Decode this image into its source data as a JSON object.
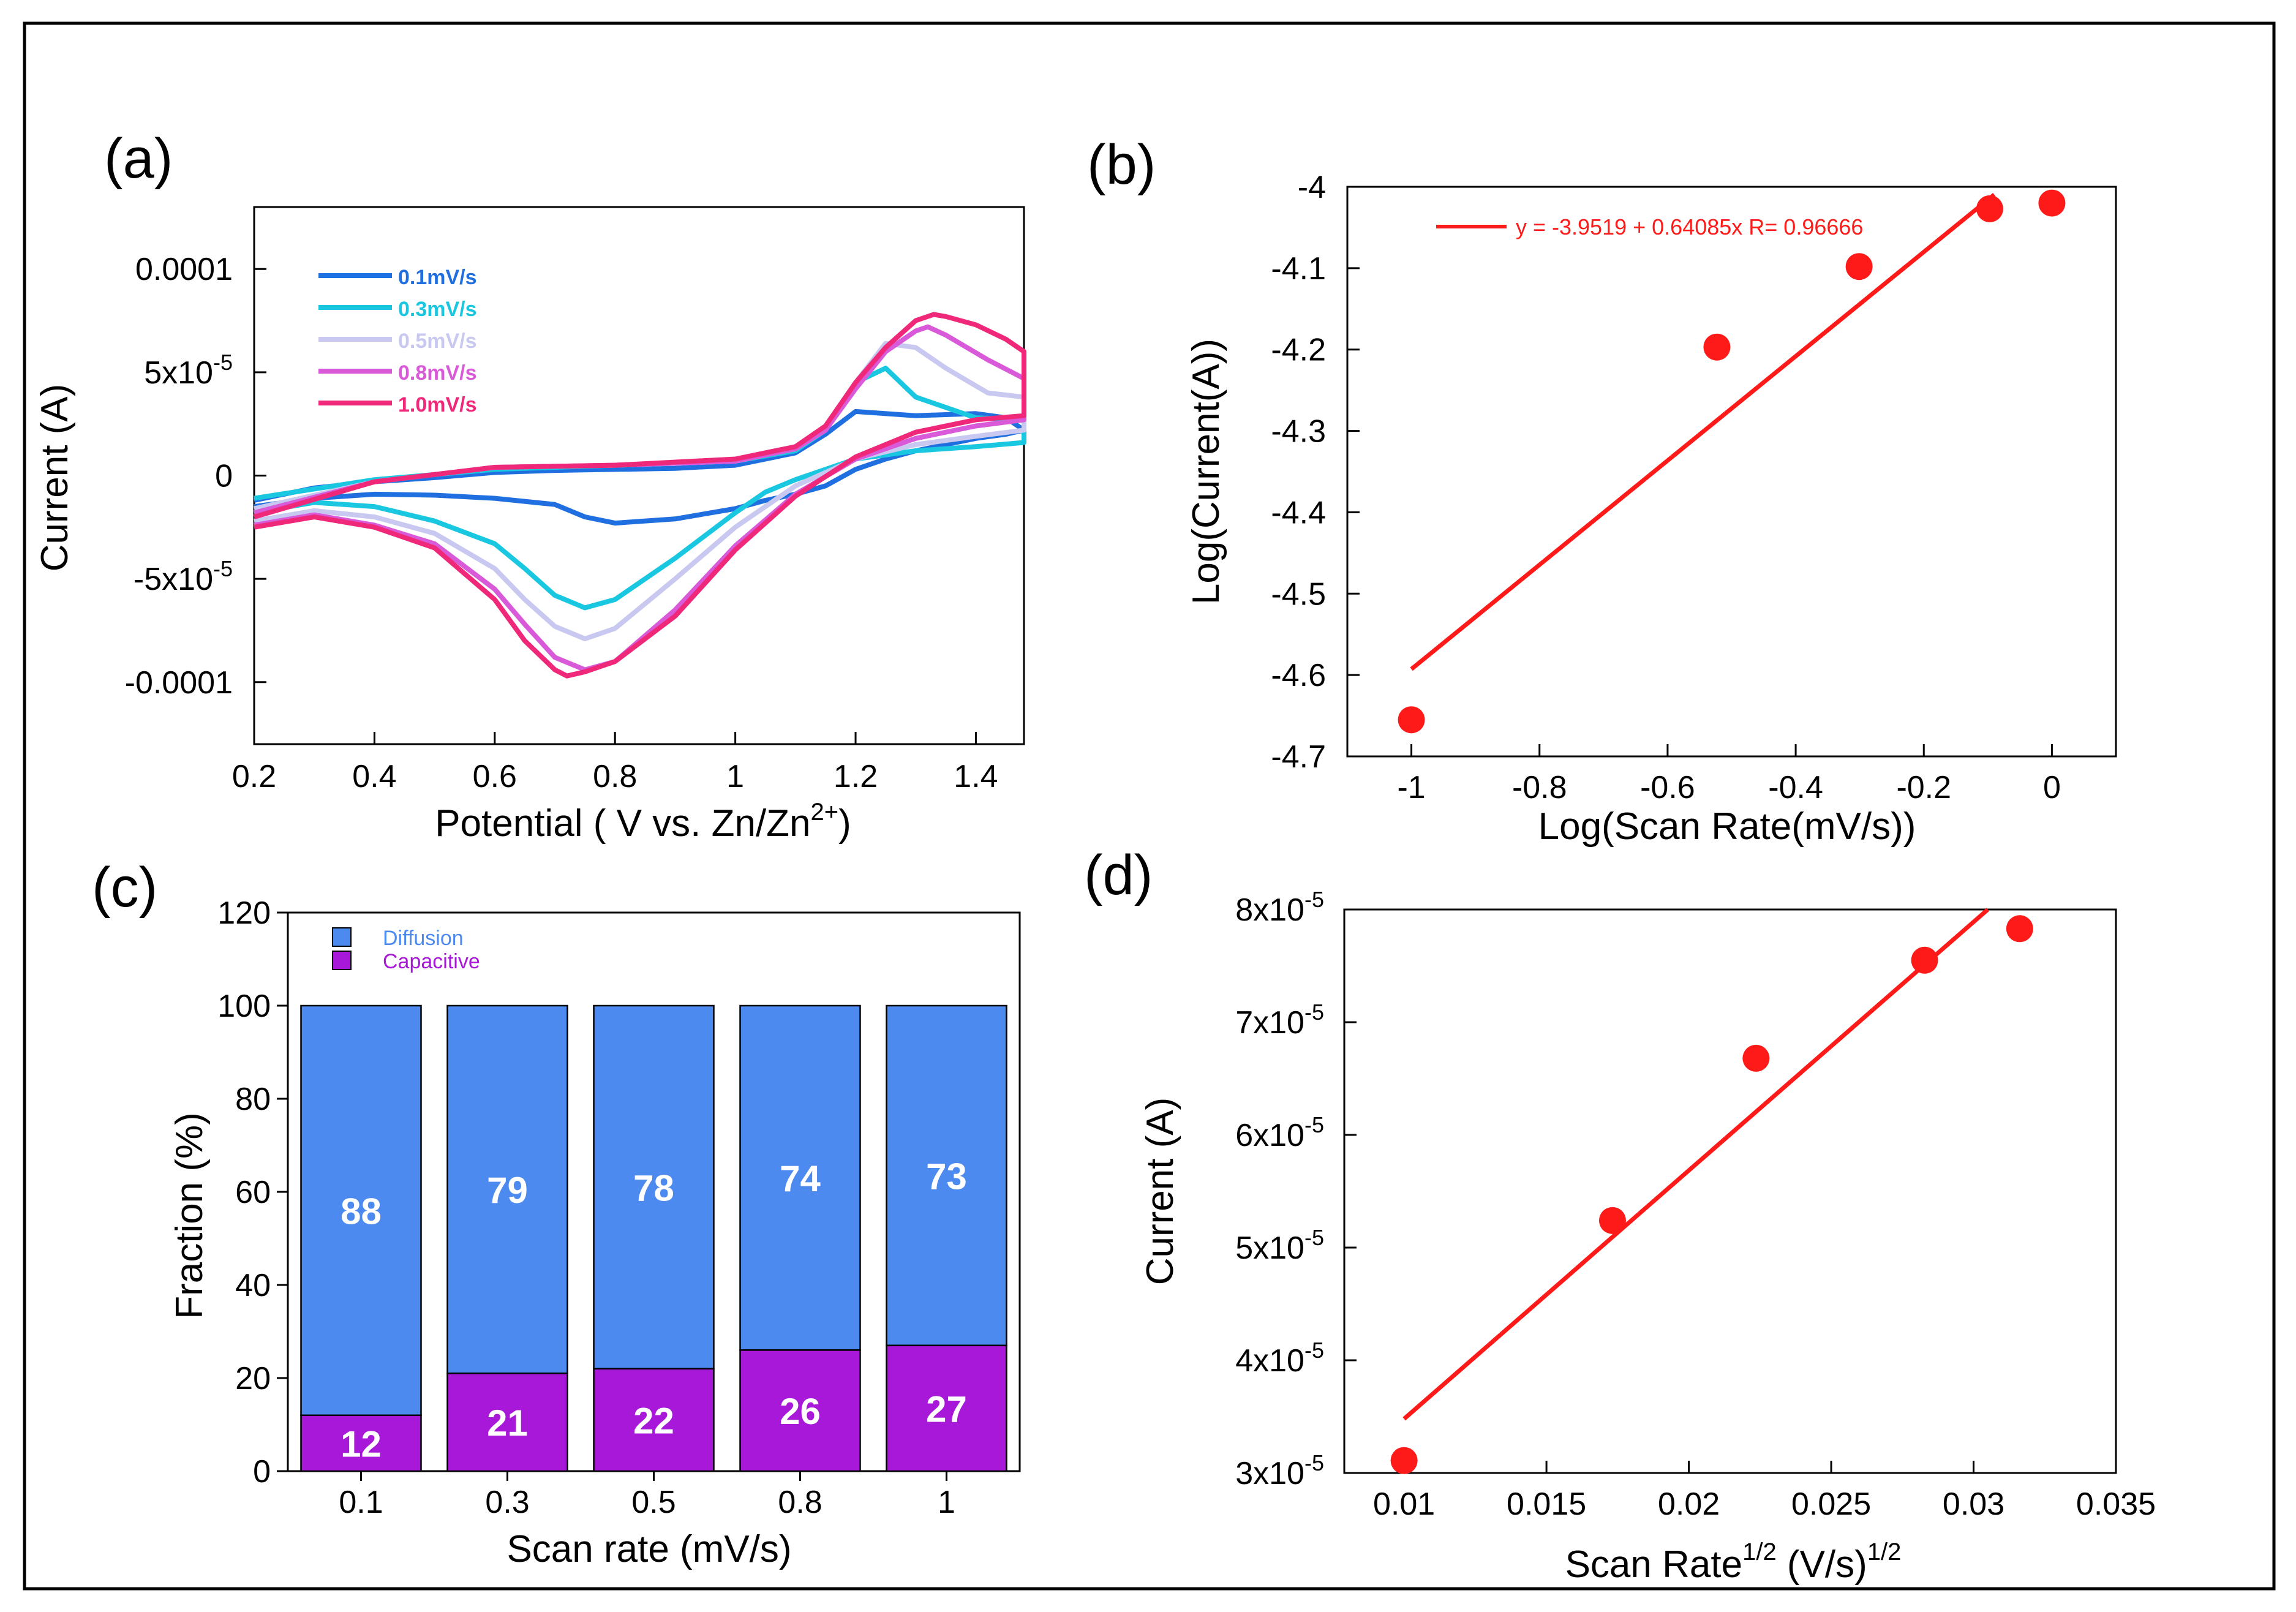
{
  "panels": [
    {
      "id": "a",
      "panel_label": "(a)",
      "chart_data": {
        "type": "line",
        "xlabel": "Potential ( V vs. Zn/Zn",
        "xlabel_sup": "2+",
        "xlabel_end": ")",
        "ylabel": "Current (A)",
        "xlim": [
          0.2,
          1.48
        ],
        "ylim": [
          -0.00013,
          0.00013
        ],
        "xticks": [
          0.2,
          0.4,
          0.6,
          0.8,
          1,
          1.2,
          1.4
        ],
        "xtick_labels": [
          "0.2",
          "0.4",
          "0.6",
          "0.8",
          "1",
          "1.2",
          "1.4"
        ],
        "yticks": [
          0.0001,
          5e-05,
          0,
          -5e-05,
          -0.0001
        ],
        "ytick_labels": [
          {
            "base": "0.0001",
            "sup": ""
          },
          {
            "base": "5x10",
            "sup": "-5"
          },
          {
            "base": "0",
            "sup": ""
          },
          {
            "base": "-5x10",
            "sup": "-5"
          },
          {
            "base": "-0.0001",
            "sup": ""
          }
        ],
        "legend_position": "top-left",
        "series": [
          {
            "name": "0.1mV/s",
            "color": "#1f6fe0",
            "x": [
              0.2,
              0.3,
              0.4,
              0.5,
              0.6,
              0.7,
              0.75,
              0.8,
              0.9,
              1.0,
              1.05,
              1.1,
              1.15,
              1.2,
              1.25,
              1.3,
              1.35,
              1.4,
              1.45,
              1.48,
              1.45,
              1.4,
              1.3,
              1.2,
              1.15,
              1.1,
              1.0,
              0.9,
              0.8,
              0.7,
              0.6,
              0.5,
              0.4,
              0.3,
              0.2
            ],
            "y": [
              -1.5e-05,
              -1.1e-05,
              -9e-06,
              -9.5e-06,
              -1.1e-05,
              -1.4e-05,
              -2e-05,
              -2.3e-05,
              -2.1e-05,
              -1.6e-05,
              -1.2e-05,
              -9e-06,
              -5e-06,
              3e-06,
              8e-06,
              1.2e-05,
              1.5e-05,
              1.8e-05,
              2e-05,
              2.2e-05,
              2.8e-05,
              3e-05,
              2.9e-05,
              3.1e-05,
              2e-05,
              1.1e-05,
              5e-06,
              3.5e-06,
              3e-06,
              2.5e-06,
              1.5e-06,
              -1e-06,
              -3e-06,
              -6e-06,
              -1.2e-05
            ]
          },
          {
            "name": "0.3mV/s",
            "color": "#19c8e0",
            "x": [
              0.2,
              0.3,
              0.4,
              0.5,
              0.6,
              0.65,
              0.7,
              0.75,
              0.8,
              0.9,
              1.0,
              1.05,
              1.1,
              1.2,
              1.3,
              1.4,
              1.48,
              1.48,
              1.4,
              1.3,
              1.25,
              1.2,
              1.15,
              1.1,
              1.0,
              0.8,
              0.6,
              0.4,
              0.2
            ],
            "y": [
              -1.8e-05,
              -1.3e-05,
              -1.5e-05,
              -2.2e-05,
              -3.3e-05,
              -4.5e-05,
              -5.8e-05,
              -6.4e-05,
              -6e-05,
              -4e-05,
              -1.8e-05,
              -8e-06,
              -2e-06,
              8e-06,
              1.2e-05,
              1.4e-05,
              1.6e-05,
              2.7e-05,
              2.8e-05,
              3.8e-05,
              5.2e-05,
              4.5e-05,
              2.2e-05,
              1.2e-05,
              7e-06,
              5e-06,
              3e-06,
              -2e-06,
              -1.1e-05
            ]
          },
          {
            "name": "0.5mV/s",
            "color": "#c8c8f0",
            "x": [
              0.2,
              0.3,
              0.4,
              0.5,
              0.6,
              0.65,
              0.7,
              0.75,
              0.8,
              0.9,
              1.0,
              1.1,
              1.2,
              1.3,
              1.4,
              1.48,
              1.48,
              1.42,
              1.35,
              1.3,
              1.25,
              1.2,
              1.15,
              1.1,
              1.0,
              0.8,
              0.6,
              0.4,
              0.2
            ],
            "y": [
              -2.2e-05,
              -1.7e-05,
              -2e-05,
              -2.8e-05,
              -4.5e-05,
              -6e-05,
              -7.3e-05,
              -7.9e-05,
              -7.4e-05,
              -5e-05,
              -2.5e-05,
              -5e-06,
              8e-06,
              1.5e-05,
              1.9e-05,
              2.2e-05,
              3.8e-05,
              4e-05,
              5.2e-05,
              6.2e-05,
              6.4e-05,
              4.5e-05,
              2.2e-05,
              1.3e-05,
              7e-06,
              5e-06,
              4e-06,
              -3e-06,
              -1.6e-05
            ]
          },
          {
            "name": "0.8mV/s",
            "color": "#d85ad8",
            "x": [
              0.2,
              0.3,
              0.4,
              0.5,
              0.6,
              0.65,
              0.7,
              0.75,
              0.8,
              0.9,
              1.0,
              1.1,
              1.2,
              1.3,
              1.4,
              1.48,
              1.48,
              1.42,
              1.35,
              1.32,
              1.3,
              1.25,
              1.2,
              1.15,
              1.1,
              1.0,
              0.8,
              0.6,
              0.4,
              0.2
            ],
            "y": [
              -2.4e-05,
              -1.9e-05,
              -2.4e-05,
              -3.3e-05,
              -5.5e-05,
              -7.2e-05,
              -8.8e-05,
              -9.4e-05,
              -9e-05,
              -6.5e-05,
              -3.4e-05,
              -9e-06,
              8e-06,
              1.8e-05,
              2.4e-05,
              2.7e-05,
              4.7e-05,
              5.6e-05,
              6.8e-05,
              7.2e-05,
              7e-05,
              6e-05,
              4.2e-05,
              2.2e-05,
              1.3e-05,
              7e-06,
              5e-06,
              4e-06,
              -3e-06,
              -1.8e-05
            ]
          },
          {
            "name": "1.0mV/s",
            "color": "#f0287a",
            "x": [
              0.2,
              0.3,
              0.4,
              0.5,
              0.6,
              0.65,
              0.7,
              0.72,
              0.75,
              0.8,
              0.9,
              1.0,
              1.1,
              1.2,
              1.3,
              1.4,
              1.48,
              1.48,
              1.45,
              1.4,
              1.35,
              1.33,
              1.3,
              1.25,
              1.2,
              1.15,
              1.1,
              1.0,
              0.8,
              0.6,
              0.4,
              0.2
            ],
            "y": [
              -2.5e-05,
              -2e-05,
              -2.5e-05,
              -3.5e-05,
              -6e-05,
              -8e-05,
              -9.4e-05,
              -9.7e-05,
              -9.5e-05,
              -9e-05,
              -6.8e-05,
              -3.6e-05,
              -1e-05,
              9e-06,
              2.1e-05,
              2.7e-05,
              2.9e-05,
              6e-05,
              6.6e-05,
              7.3e-05,
              7.7e-05,
              7.8e-05,
              7.5e-05,
              6.2e-05,
              4.5e-05,
              2.4e-05,
              1.4e-05,
              8e-06,
              5e-06,
              4e-06,
              -3e-06,
              -2e-05
            ]
          }
        ]
      }
    },
    {
      "id": "b",
      "panel_label": "(b)",
      "chart_data": {
        "type": "scatter",
        "xlabel": "Log(Scan Rate(mV/s))",
        "ylabel": "Log(Current(A))",
        "xlim": [
          -1.1,
          0.1
        ],
        "ylim": [
          -4.7,
          -4.0
        ],
        "xticks": [
          -1,
          -0.8,
          -0.6,
          -0.4,
          -0.2,
          0
        ],
        "xtick_labels": [
          "-1",
          "-0.8",
          "-0.6",
          "-0.4",
          "-0.2",
          "0"
        ],
        "yticks": [
          -4,
          -4.1,
          -4.2,
          -4.3,
          -4.4,
          -4.5,
          -4.6,
          -4.7
        ],
        "ytick_labels": [
          "-4",
          "-4.1",
          "-4.2",
          "-4.3",
          "-4.4",
          "-4.5",
          "-4.6",
          "-4.7"
        ],
        "points": {
          "x": [
            -1,
            -0.523,
            -0.301,
            -0.097,
            0
          ],
          "y": [
            -4.655,
            -4.197,
            -4.098,
            -4.027,
            -4.02
          ]
        },
        "fit": {
          "intercept": -3.9519,
          "slope": 0.64085,
          "x_range": [
            -1,
            -0.09
          ]
        },
        "fit_label": "y = -3.9519 + 0.64085x   R= 0.96666",
        "marker_color": "#ff1a1a",
        "line_color": "#ff1a1a"
      }
    },
    {
      "id": "c",
      "panel_label": "(c)",
      "chart_data": {
        "type": "bar",
        "stacked": true,
        "xlabel": "Scan rate (mV/s)",
        "ylabel": "Fraction (%)",
        "ylim": [
          0,
          120
        ],
        "yticks": [
          0,
          20,
          40,
          60,
          80,
          100,
          120
        ],
        "ytick_labels": [
          "0",
          "20",
          "40",
          "60",
          "80",
          "100",
          "120"
        ],
        "categories": [
          "0.1",
          "0.3",
          "0.5",
          "0.8",
          "1"
        ],
        "series": [
          {
            "name": "Capacitive",
            "color": "#a818d8",
            "values": [
              12,
              21,
              22,
              26,
              27
            ],
            "labels": [
              "12",
              "21",
              "22",
              "26",
              "27"
            ]
          },
          {
            "name": "Diffusion",
            "color": "#4d8af0",
            "values": [
              88,
              79,
              78,
              74,
              73
            ],
            "labels": [
              "88",
              "79",
              "78",
              "74",
              "73"
            ]
          }
        ],
        "legend_position": "top",
        "legend": [
          {
            "label": "Diffusion",
            "color": "#4d8af0",
            "text_color": "#4d8af0"
          },
          {
            "label": "Capacitive",
            "color": "#a818d8",
            "text_color": "#a818d8"
          }
        ]
      }
    },
    {
      "id": "d",
      "panel_label": "(d)",
      "chart_data": {
        "type": "scatter",
        "xlabel": "Scan Rate",
        "xlabel_sup": "1/2",
        "xlabel_mid": " (V/s)",
        "xlabel_sup2": "1/2",
        "ylabel": "Current (A)",
        "xlim": [
          0.0079,
          0.035
        ],
        "ylim": [
          3e-05,
          8e-05
        ],
        "xticks": [
          0.01,
          0.015,
          0.02,
          0.025,
          0.03,
          0.035
        ],
        "xtick_labels": [
          "0.01",
          "0.015",
          "0.02",
          "0.025",
          "0.03",
          "0.035"
        ],
        "yticks": [
          3e-05,
          4e-05,
          5e-05,
          6e-05,
          7e-05,
          8e-05
        ],
        "ytick_labels": [
          {
            "base": "3x10",
            "sup": "-5"
          },
          {
            "base": "4x10",
            "sup": "-5"
          },
          {
            "base": "5x10",
            "sup": "-5"
          },
          {
            "base": "6x10",
            "sup": "-5"
          },
          {
            "base": "7x10",
            "sup": "-5"
          },
          {
            "base": "8x10",
            "sup": "-5"
          }
        ],
        "points": {
          "x": [
            0.01,
            0.01732,
            0.02236,
            0.02828,
            0.03162
          ],
          "y": [
            3.11e-05,
            5.24e-05,
            6.68e-05,
            7.55e-05,
            7.83e-05
          ]
        },
        "fit": {
          "x0": 0.01,
          "y0": 3.48e-05,
          "x1": 0.0305,
          "y1": 8e-05
        },
        "marker_color": "#ff1a1a",
        "line_color": "#ff1a1a"
      }
    }
  ]
}
